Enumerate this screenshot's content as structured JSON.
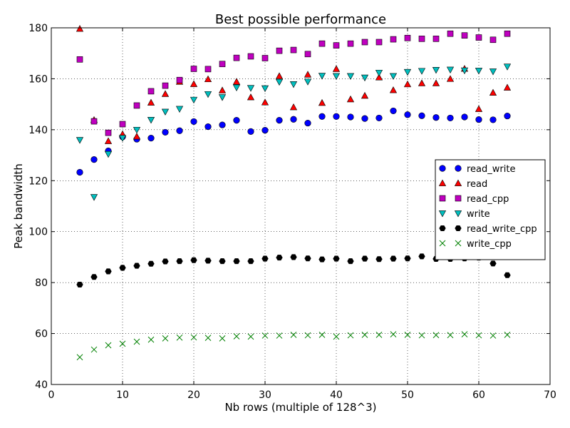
{
  "chart_data": {
    "type": "scatter",
    "title": "Best possible performance",
    "xlabel": "Nb rows (multiple of 128^3)",
    "ylabel": "Peak bandwidth",
    "xlim": [
      0,
      70
    ],
    "ylim": [
      40,
      180
    ],
    "xticks": [
      0,
      10,
      20,
      30,
      40,
      50,
      60,
      70
    ],
    "yticks": [
      40,
      60,
      80,
      100,
      120,
      140,
      160,
      180
    ],
    "grid": true,
    "legend_position": "center-right",
    "x": [
      4,
      6,
      8,
      10,
      12,
      14,
      16,
      18,
      20,
      22,
      24,
      26,
      28,
      30,
      32,
      34,
      36,
      38,
      40,
      42,
      44,
      46,
      48,
      50,
      52,
      54,
      56,
      58,
      60,
      62,
      64
    ],
    "series": [
      {
        "name": "read_write",
        "marker": "circle",
        "color": "#0000ff",
        "values": [
          123.3,
          128.3,
          131.7,
          137.2,
          136.3,
          136.7,
          139.0,
          139.6,
          143.2,
          141.2,
          141.9,
          143.7,
          139.3,
          139.8,
          143.7,
          144.1,
          142.6,
          145.2,
          145.2,
          145.0,
          144.4,
          144.6,
          147.4,
          145.9,
          145.5,
          144.8,
          144.6,
          145.0,
          144.0,
          143.9,
          145.4
        ]
      },
      {
        "name": "read",
        "marker": "triangle-up",
        "color": "#ff0000",
        "values": [
          179.6,
          143.8,
          135.5,
          138.2,
          137.3,
          150.6,
          154.0,
          158.8,
          157.9,
          159.8,
          155.4,
          158.8,
          152.7,
          150.7,
          161.0,
          148.8,
          161.6,
          150.5,
          163.8,
          151.9,
          153.3,
          160.5,
          155.5,
          157.8,
          158.2,
          158.2,
          159.9,
          163.9,
          148.1,
          154.5,
          156.5
        ]
      },
      {
        "name": "read_cpp",
        "marker": "square",
        "color": "#bf00bf",
        "values": [
          167.6,
          143.3,
          138.8,
          142.2,
          149.5,
          155.1,
          157.3,
          159.5,
          163.9,
          163.8,
          165.8,
          168.2,
          168.8,
          168.1,
          171.0,
          171.3,
          169.7,
          173.8,
          173.1,
          173.8,
          174.4,
          174.4,
          175.5,
          176.0,
          175.7,
          175.7,
          177.7,
          177.0,
          176.2,
          175.3,
          177.7
        ]
      },
      {
        "name": "write",
        "marker": "triangle-down",
        "color": "#00bfbf",
        "values": [
          136.0,
          113.6,
          130.5,
          136.8,
          140.0,
          143.9,
          147.1,
          148.2,
          151.8,
          154.0,
          152.8,
          156.6,
          156.4,
          156.3,
          158.8,
          157.9,
          158.9,
          161.2,
          161.1,
          161.1,
          160.5,
          162.4,
          161.1,
          162.7,
          163.1,
          163.5,
          163.6,
          163.3,
          163.2,
          162.9,
          164.8
        ]
      },
      {
        "name": "read_write_cpp",
        "marker": "hexagon",
        "color": "#000000",
        "values": [
          79.2,
          82.2,
          84.4,
          85.8,
          86.6,
          87.4,
          88.3,
          88.4,
          88.8,
          88.6,
          88.4,
          88.4,
          88.4,
          89.4,
          89.8,
          90.0,
          89.5,
          89.1,
          89.4,
          88.4,
          89.4,
          89.2,
          89.4,
          89.5,
          90.3,
          89.3,
          89.3,
          89.5,
          89.8,
          87.5,
          82.9
        ]
      },
      {
        "name": "write_cpp",
        "marker": "x",
        "color": "#008000",
        "values": [
          50.7,
          53.7,
          55.4,
          56.0,
          56.8,
          57.6,
          58.1,
          58.4,
          58.5,
          58.3,
          58.1,
          58.9,
          58.8,
          59.2,
          59.2,
          59.5,
          59.3,
          59.5,
          58.8,
          59.3,
          59.5,
          59.5,
          59.7,
          59.5,
          59.3,
          59.4,
          59.4,
          59.7,
          59.3,
          59.2,
          59.5
        ]
      }
    ]
  }
}
